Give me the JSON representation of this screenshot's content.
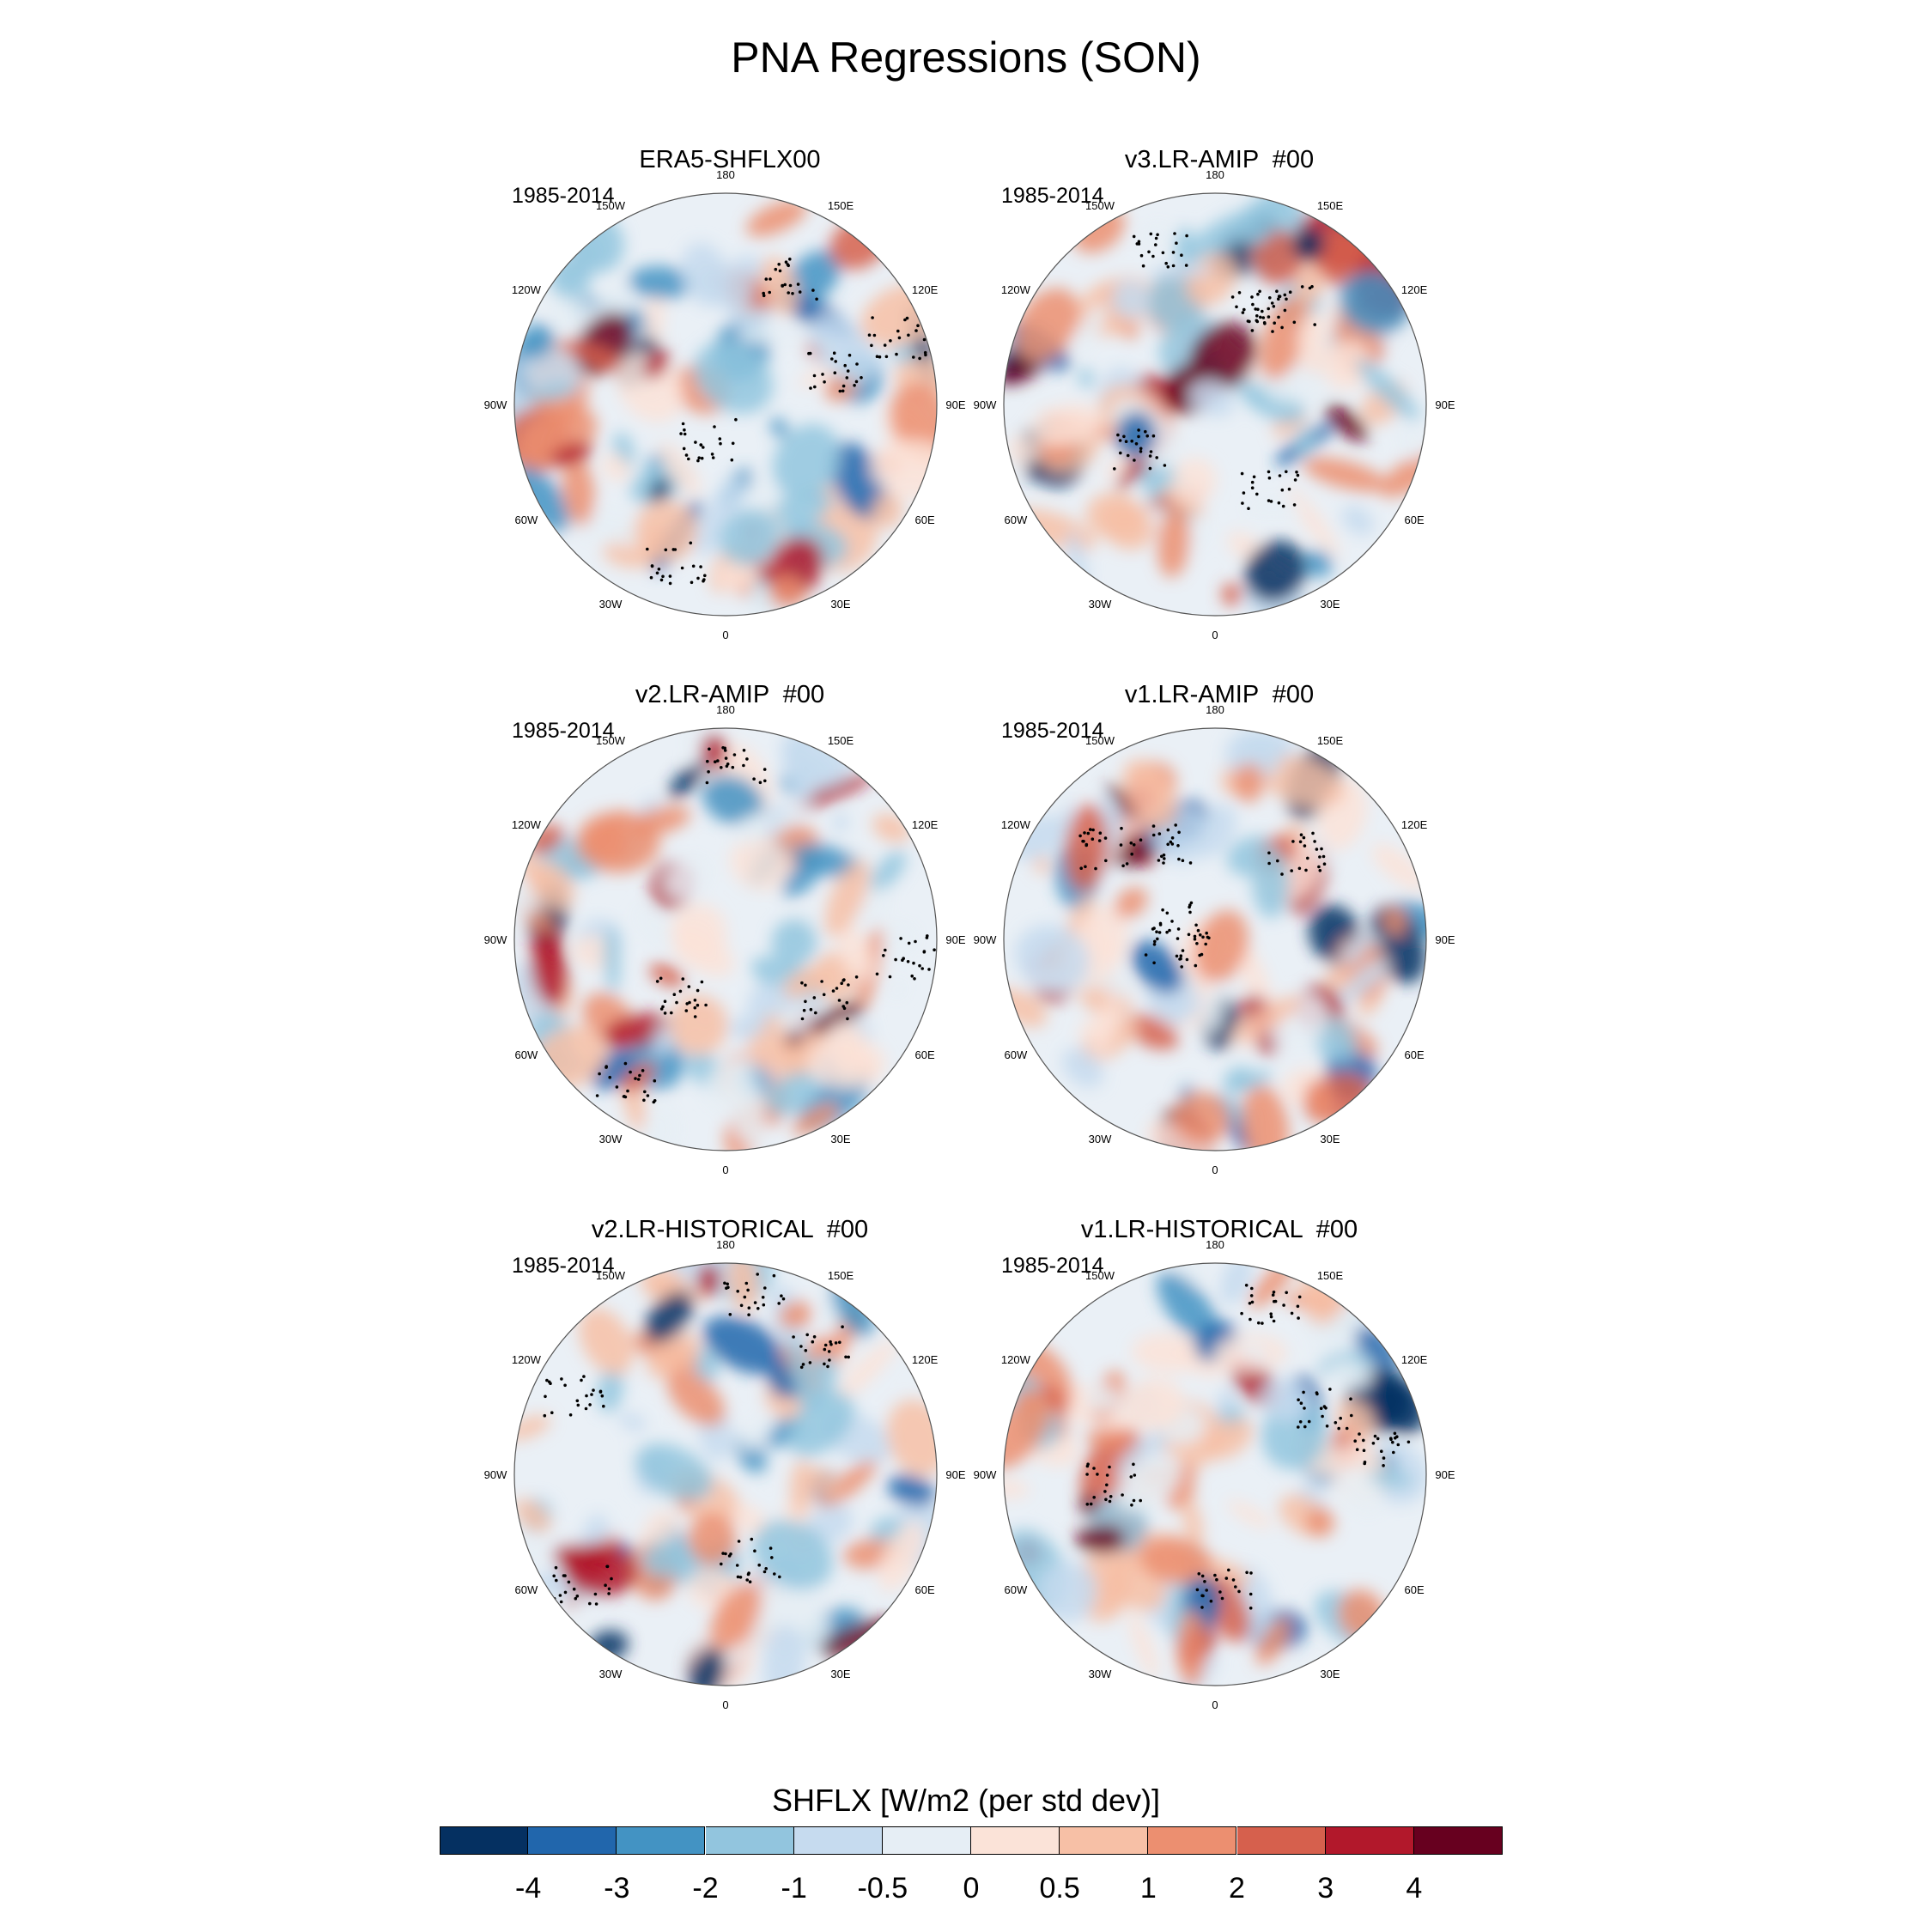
{
  "title": "PNA Regressions (SON)",
  "panels": [
    {
      "name": "ERA5-SHFLX00",
      "period": "1985-2014"
    },
    {
      "name": "v3.LR-AMIP  #00",
      "period": "1985-2014"
    },
    {
      "name": "v2.LR-AMIP  #00",
      "period": "1985-2014"
    },
    {
      "name": "v1.LR-AMIP  #00",
      "period": "1985-2014"
    },
    {
      "name": "v2.LR-HISTORICAL  #00",
      "period": "1985-2014"
    },
    {
      "name": "v1.LR-HISTORICAL  #00",
      "period": "1985-2014"
    }
  ],
  "longitude_labels": [
    "180",
    "150E",
    "120E",
    "90E",
    "60E",
    "30E",
    "0",
    "30W",
    "60W",
    "90W",
    "120W",
    "150W"
  ],
  "colorbar": {
    "title": "SHFLX [W/m2 (per std dev)]",
    "labels": [
      "-4",
      "-3",
      "-2",
      "-1",
      "-0.5",
      "0",
      "0.5",
      "1",
      "2",
      "3",
      "4"
    ],
    "colors": [
      "#053061",
      "#2166ac",
      "#4393c3",
      "#92c5de",
      "#c6dbef",
      "#e6eef5",
      "#fbe3d8",
      "#f7c0a6",
      "#ec8f70",
      "#d6604d",
      "#b2182b",
      "#67001f"
    ]
  }
}
